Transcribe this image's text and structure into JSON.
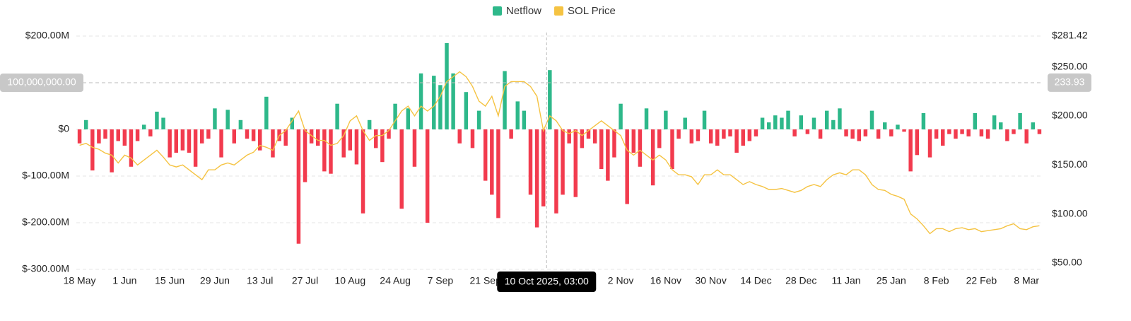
{
  "chart_data": {
    "type": "bar_line",
    "categories": [
      "18 May",
      null,
      null,
      null,
      null,
      null,
      null,
      "1 Jun",
      null,
      null,
      null,
      null,
      null,
      null,
      "15 Jun",
      null,
      null,
      null,
      null,
      null,
      null,
      "29 Jun",
      null,
      null,
      null,
      null,
      null,
      null,
      "13 Jul",
      null,
      null,
      null,
      null,
      null,
      null,
      "27 Jul",
      null,
      null,
      null,
      null,
      null,
      null,
      "10 Aug",
      null,
      null,
      null,
      null,
      null,
      null,
      "24 Aug",
      null,
      null,
      null,
      null,
      null,
      null,
      "7 Sep",
      null,
      null,
      null,
      null,
      null,
      null,
      "21 Sep",
      null,
      null,
      null,
      null,
      null,
      null,
      null,
      null,
      null,
      null,
      null,
      null,
      null,
      null,
      null,
      null,
      null,
      null,
      null,
      null,
      "2 Nov",
      null,
      null,
      null,
      null,
      null,
      null,
      "16 Nov",
      null,
      null,
      null,
      null,
      null,
      null,
      "30 Nov",
      null,
      null,
      null,
      null,
      null,
      null,
      "14 Dec",
      null,
      null,
      null,
      null,
      null,
      null,
      "28 Dec",
      null,
      null,
      null,
      null,
      null,
      null,
      "11 Jan",
      null,
      null,
      null,
      null,
      null,
      null,
      "25 Jan",
      null,
      null,
      null,
      null,
      null,
      null,
      "8 Feb",
      null,
      null,
      null,
      null,
      null,
      null,
      "22 Feb",
      null,
      null,
      null,
      null,
      null,
      null,
      "8 Mar",
      null,
      null
    ],
    "series": [
      {
        "name": "Netflow",
        "color": "#2eb88a",
        "negative_color": "#f23b4e",
        "values": [
          -30000000.0,
          20000000.0,
          -88000000.0,
          -30000000.0,
          -20000000.0,
          -92000000.0,
          -25000000.0,
          -35000000.0,
          -80000000.0,
          -25000000.0,
          10000000.0,
          -15000000.0,
          38000000.0,
          25000000.0,
          -60000000.0,
          -50000000.0,
          -45000000.0,
          -50000000.0,
          -80000000.0,
          -30000000.0,
          -20000000.0,
          45000000.0,
          -60000000.0,
          42000000.0,
          -30000000.0,
          20000000.0,
          -20000000.0,
          -25000000.0,
          -45000000.0,
          70000000.0,
          -60000000.0,
          -25000000.0,
          -35000000.0,
          25000000.0,
          -245000000.0,
          -113000000.0,
          -30000000.0,
          -35000000.0,
          -90000000.0,
          -95000000.0,
          55000000.0,
          -60000000.0,
          -45000000.0,
          -75000000.0,
          -180000000.0,
          20000000.0,
          -40000000.0,
          -70000000.0,
          -20000000.0,
          55000000.0,
          -170000000.0,
          45000000.0,
          -80000000.0,
          120000000.0,
          -200000000.0,
          115000000.0,
          95000000.0,
          185000000.0,
          120000000.0,
          -30000000.0,
          80000000.0,
          -40000000.0,
          40000000.0,
          -110000000.0,
          -140000000.0,
          -190000000.0,
          125000000.0,
          -20000000.0,
          60000000.0,
          40000000.0,
          -140000000.0,
          -210000000.0,
          -165000000.0,
          127000000.0,
          -180000000.0,
          -140000000.0,
          -30000000.0,
          -145000000.0,
          -40000000.0,
          -20000000.0,
          -30000000.0,
          -85000000.0,
          -110000000.0,
          -60000000.0,
          55000000.0,
          -160000000.0,
          -50000000.0,
          -80000000.0,
          45000000.0,
          -120000000.0,
          -40000000.0,
          40000000.0,
          -85000000.0,
          -20000000.0,
          25000000.0,
          -30000000.0,
          -25000000.0,
          40000000.0,
          -30000000.0,
          -35000000.0,
          -20000000.0,
          -15000000.0,
          -50000000.0,
          -35000000.0,
          -25000000.0,
          -15000000.0,
          25000000.0,
          15000000.0,
          30000000.0,
          25000000.0,
          40000000.0,
          -15000000.0,
          30000000.0,
          -10000000.0,
          25000000.0,
          -20000000.0,
          40000000.0,
          20000000.0,
          45000000.0,
          -15000000.0,
          -20000000.0,
          -25000000.0,
          -15000000.0,
          40000000.0,
          -20000000.0,
          15000000.0,
          -15000000.0,
          10000000.0,
          -5000000.0,
          -90000000.0,
          -55000000.0,
          35000000.0,
          -60000000.0,
          -20000000.0,
          -35000000.0,
          -10000000.0,
          -20000000.0,
          -10000000.0,
          -15000000.0,
          35000000.0,
          -15000000.0,
          -20000000.0,
          30000000.0,
          15000000.0,
          -25000000.0,
          -10000000.0,
          35000000.0,
          -30000000.0,
          15000000.0,
          -10000000.0
        ]
      },
      {
        "name": "SOL Price",
        "color": "#f5c342",
        "axis": "y2",
        "values": [
          170,
          172,
          168,
          166,
          162,
          160,
          152,
          160,
          157,
          150,
          155,
          160,
          165,
          158,
          150,
          148,
          150,
          145,
          140,
          135,
          145,
          145,
          150,
          152,
          150,
          155,
          160,
          163,
          170,
          168,
          165,
          180,
          185,
          195,
          205,
          185,
          180,
          175,
          175,
          170,
          172,
          180,
          195,
          200,
          185,
          175,
          180,
          180,
          185,
          195,
          205,
          210,
          200,
          210,
          205,
          210,
          220,
          235,
          240,
          245,
          240,
          230,
          215,
          210,
          220,
          200,
          230,
          235,
          235,
          235,
          230,
          220,
          185,
          200,
          195,
          185,
          182,
          185,
          180,
          185,
          190,
          195,
          190,
          185,
          180,
          165,
          160,
          165,
          160,
          155,
          160,
          155,
          145,
          140,
          140,
          138,
          130,
          140,
          140,
          145,
          140,
          140,
          135,
          130,
          133,
          130,
          128,
          125,
          125,
          126,
          124,
          122,
          124,
          128,
          130,
          128,
          135,
          140,
          142,
          140,
          145,
          145,
          140,
          130,
          125,
          124,
          120,
          118,
          115,
          100,
          95,
          88,
          80,
          85,
          85,
          82,
          85,
          86,
          84,
          85,
          82,
          83,
          84,
          85,
          88,
          90,
          85,
          84,
          87,
          88
        ]
      }
    ],
    "ylim": [
      -300000000.0,
      200000000.0
    ],
    "yticks": [
      {
        "value": 200000000.0,
        "label": "$200.00M"
      },
      {
        "value": 0,
        "label": "$0"
      },
      {
        "value": -100000000.0,
        "label": "$-100.00M"
      },
      {
        "value": -200000000.0,
        "label": "$-200.00M"
      },
      {
        "value": -300000000.0,
        "label": "$-300.00M"
      }
    ],
    "y2lim": [
      43.5,
      281.42
    ],
    "y2ticks": [
      {
        "value": 281.42,
        "label": "$281.42"
      },
      {
        "value": 250,
        "label": "$250.00"
      },
      {
        "value": 200,
        "label": "$200.00"
      },
      {
        "value": 150,
        "label": "$150.00"
      },
      {
        "value": 100,
        "label": "$100.00"
      },
      {
        "value": 50,
        "label": "$50.00"
      }
    ],
    "grid": true,
    "legend": "top",
    "crosshair": {
      "x_label": "10 Oct 2025, 03:00",
      "y": 100000000.0,
      "y_label": "100,000,000.00",
      "y2": 233.93,
      "y2_label": "233.93"
    }
  }
}
